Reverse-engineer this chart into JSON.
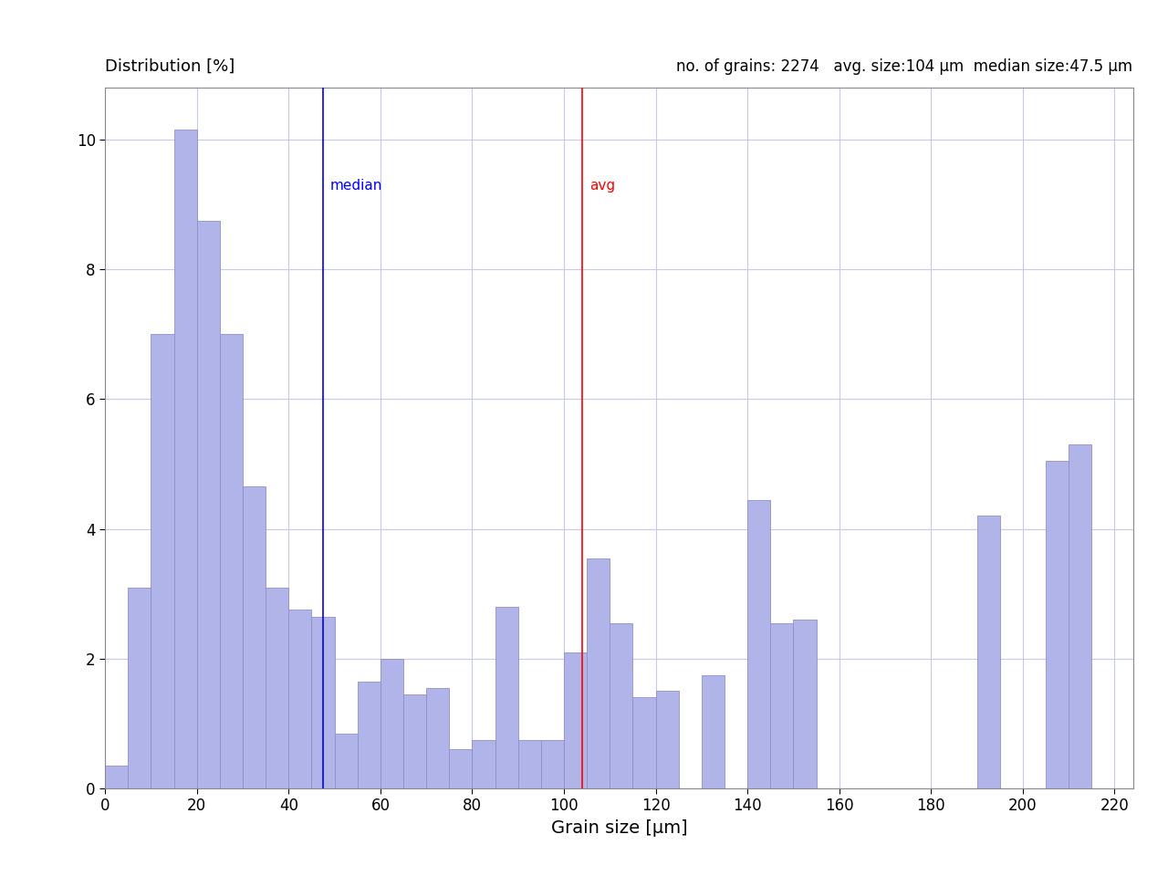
{
  "title_left": "Distribution [%]",
  "title_right": "no. of grains: 2274   avg. size:104 μm  median size:47.5 μm",
  "xlabel": "Grain size [μm]",
  "bar_color": "#b0b4e8",
  "bar_edge_color": "#9090c8",
  "median_value": 47.5,
  "avg_value": 104,
  "xlim": [
    0,
    224
  ],
  "ylim": [
    0,
    10.8
  ],
  "yticks": [
    0,
    2,
    4,
    6,
    8,
    10
  ],
  "xticks": [
    0,
    20,
    40,
    60,
    80,
    100,
    120,
    140,
    160,
    180,
    200,
    220
  ],
  "grid_color": "#c8c8e8",
  "bin_width": 5,
  "bar_data": [
    {
      "x": 2.5,
      "height": 0.35
    },
    {
      "x": 7.5,
      "height": 3.1
    },
    {
      "x": 12.5,
      "height": 7.0
    },
    {
      "x": 17.5,
      "height": 10.15
    },
    {
      "x": 22.5,
      "height": 8.75
    },
    {
      "x": 27.5,
      "height": 7.0
    },
    {
      "x": 32.5,
      "height": 4.65
    },
    {
      "x": 37.5,
      "height": 3.1
    },
    {
      "x": 42.5,
      "height": 2.75
    },
    {
      "x": 47.5,
      "height": 2.65
    },
    {
      "x": 52.5,
      "height": 0.85
    },
    {
      "x": 57.5,
      "height": 1.65
    },
    {
      "x": 62.5,
      "height": 2.0
    },
    {
      "x": 67.5,
      "height": 1.45
    },
    {
      "x": 72.5,
      "height": 1.55
    },
    {
      "x": 77.5,
      "height": 0.6
    },
    {
      "x": 82.5,
      "height": 0.75
    },
    {
      "x": 87.5,
      "height": 2.8
    },
    {
      "x": 92.5,
      "height": 0.75
    },
    {
      "x": 97.5,
      "height": 0.75
    },
    {
      "x": 102.5,
      "height": 2.1
    },
    {
      "x": 107.5,
      "height": 3.55
    },
    {
      "x": 112.5,
      "height": 2.55
    },
    {
      "x": 117.5,
      "height": 1.4
    },
    {
      "x": 122.5,
      "height": 1.5
    },
    {
      "x": 127.5,
      "height": 0.0
    },
    {
      "x": 132.5,
      "height": 1.75
    },
    {
      "x": 137.5,
      "height": 0.0
    },
    {
      "x": 142.5,
      "height": 4.45
    },
    {
      "x": 147.5,
      "height": 2.55
    },
    {
      "x": 152.5,
      "height": 2.6
    },
    {
      "x": 157.5,
      "height": 0.0
    },
    {
      "x": 162.5,
      "height": 0.0
    },
    {
      "x": 167.5,
      "height": 0.0
    },
    {
      "x": 172.5,
      "height": 0.0
    },
    {
      "x": 177.5,
      "height": 0.0
    },
    {
      "x": 182.5,
      "height": 0.0
    },
    {
      "x": 187.5,
      "height": 0.0
    },
    {
      "x": 192.5,
      "height": 4.2
    },
    {
      "x": 197.5,
      "height": 0.0
    },
    {
      "x": 202.5,
      "height": 0.0
    },
    {
      "x": 207.5,
      "height": 5.05
    },
    {
      "x": 212.5,
      "height": 5.3
    },
    {
      "x": 217.5,
      "height": 0.0
    }
  ]
}
